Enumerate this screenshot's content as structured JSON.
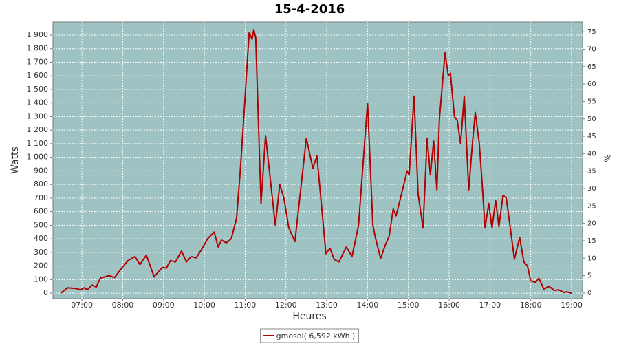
{
  "chart_data": {
    "type": "line",
    "title": "15-4-2016",
    "xlabel": "Heures",
    "ylabel": "Watts",
    "y2label": "%",
    "x": [
      6.48,
      6.65,
      6.85,
      6.97,
      7.05,
      7.13,
      7.25,
      7.35,
      7.45,
      7.66,
      7.8,
      7.96,
      8.13,
      8.3,
      8.42,
      8.58,
      8.77,
      8.97,
      9.07,
      9.17,
      9.29,
      9.44,
      9.56,
      9.68,
      9.8,
      9.93,
      10.08,
      10.24,
      10.34,
      10.42,
      10.54,
      10.66,
      10.79,
      10.88,
      10.98,
      11.03,
      11.1,
      11.17,
      11.21,
      11.26,
      11.39,
      11.5,
      11.74,
      11.85,
      11.95,
      12.07,
      12.22,
      12.5,
      12.66,
      12.76,
      12.98,
      13.08,
      13.18,
      13.3,
      13.48,
      13.62,
      13.78,
      14.0,
      14.13,
      14.2,
      14.32,
      14.43,
      14.53,
      14.63,
      14.7,
      14.8,
      14.97,
      15.02,
      15.14,
      15.24,
      15.36,
      15.46,
      15.54,
      15.62,
      15.7,
      15.76,
      15.9,
      15.98,
      16.03,
      16.13,
      16.2,
      16.28,
      16.37,
      16.48,
      16.57,
      16.64,
      16.74,
      16.81,
      16.88,
      16.97,
      17.05,
      17.14,
      17.22,
      17.32,
      17.4,
      17.49,
      17.6,
      17.73,
      17.83,
      17.92,
      18.0,
      18.12,
      18.2,
      18.32,
      18.45,
      18.58,
      18.68,
      18.82,
      18.88,
      19.0
    ],
    "series": [
      {
        "name": "gmosol( 6,592 kWh )",
        "color": "#b00000",
        "values": [
          0,
          40,
          35,
          25,
          40,
          25,
          60,
          45,
          110,
          130,
          115,
          180,
          240,
          270,
          210,
          280,
          120,
          190,
          185,
          240,
          230,
          310,
          230,
          270,
          260,
          320,
          400,
          450,
          340,
          390,
          370,
          400,
          550,
          900,
          1350,
          1600,
          1920,
          1870,
          1940,
          1880,
          660,
          1160,
          500,
          800,
          700,
          480,
          380,
          1140,
          920,
          1010,
          290,
          330,
          250,
          230,
          340,
          270,
          500,
          1400,
          500,
          400,
          255,
          350,
          420,
          620,
          570,
          690,
          900,
          870,
          1450,
          730,
          480,
          1140,
          870,
          1120,
          760,
          1280,
          1770,
          1600,
          1620,
          1300,
          1270,
          1100,
          1450,
          760,
          1100,
          1330,
          1100,
          800,
          480,
          660,
          480,
          680,
          490,
          720,
          700,
          500,
          250,
          410,
          230,
          200,
          90,
          80,
          110,
          30,
          50,
          20,
          25,
          5,
          10,
          0
        ]
      }
    ],
    "xlim": [
      6.29,
      19.27
    ],
    "xticks": [
      {
        "value": 7,
        "label": "07:00"
      },
      {
        "value": 8,
        "label": "08:00"
      },
      {
        "value": 9,
        "label": "09:00"
      },
      {
        "value": 10,
        "label": "10:00"
      },
      {
        "value": 11,
        "label": "11:00"
      },
      {
        "value": 12,
        "label": "12:00"
      },
      {
        "value": 13,
        "label": "13:00"
      },
      {
        "value": 14,
        "label": "14:00"
      },
      {
        "value": 15,
        "label": "15:00"
      },
      {
        "value": 16,
        "label": "16:00"
      },
      {
        "value": 17,
        "label": "17:00"
      },
      {
        "value": 18,
        "label": "18:00"
      },
      {
        "value": 19,
        "label": "19:00"
      }
    ],
    "ylim": [
      -40,
      1996
    ],
    "yticks": [
      0,
      100,
      200,
      300,
      400,
      500,
      600,
      700,
      800,
      900,
      {
        "value": 1000,
        "label": "1 000"
      },
      {
        "value": 1100,
        "label": "1 100"
      },
      {
        "value": 1200,
        "label": "1 200"
      },
      {
        "value": 1300,
        "label": "1 300"
      },
      {
        "value": 1400,
        "label": "1 400"
      },
      {
        "value": 1500,
        "label": "1 500"
      },
      {
        "value": 1600,
        "label": "1 600"
      },
      {
        "value": 1700,
        "label": "1 700"
      },
      {
        "value": 1800,
        "label": "1 800"
      },
      {
        "value": 1900,
        "label": "1 900"
      }
    ],
    "y2lim": [
      -1.6,
      77.8
    ],
    "y2ticks": [
      0,
      5,
      10,
      15,
      20,
      25,
      30,
      35,
      40,
      45,
      50,
      55,
      60,
      65,
      70,
      75
    ],
    "grid": true,
    "legend": "bottom",
    "background": "#9fc3c3"
  }
}
